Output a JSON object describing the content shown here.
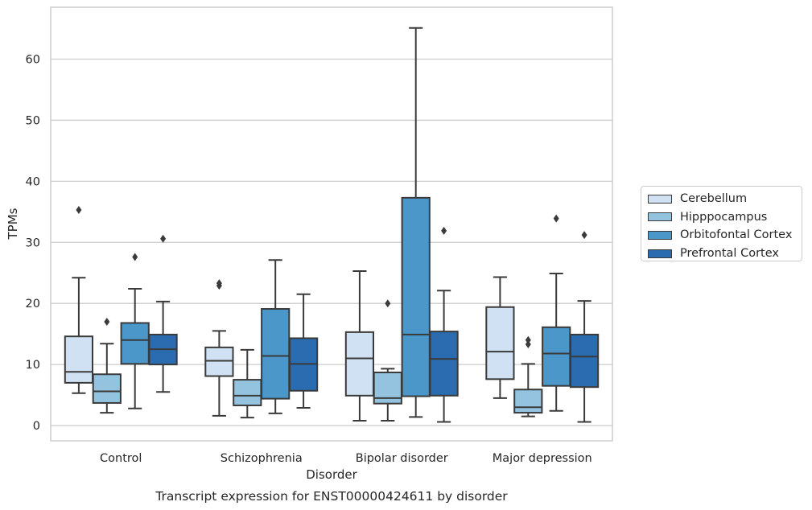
{
  "chart_data": {
    "type": "boxplot",
    "title": "Transcript expression for ENST00000424611 by disorder",
    "xlabel": "Disorder",
    "ylabel": "TPMs",
    "ylim": [
      -2.5,
      68.5
    ],
    "yticks": [
      0,
      10,
      20,
      30,
      40,
      50,
      60
    ],
    "grid": true,
    "legend_placement": "right",
    "categories": [
      "Control",
      "Schizophrenia",
      "Bipolar disorder",
      "Major depression"
    ],
    "series": [
      {
        "name": "Cerebellum",
        "color": "#cfe1f2",
        "boxes": [
          {
            "whislo": 5.3,
            "q1": 7.0,
            "med": 8.8,
            "q3": 14.6,
            "whishi": 24.2,
            "fliers": [
              35.3
            ]
          },
          {
            "whislo": 1.6,
            "q1": 8.1,
            "med": 10.6,
            "q3": 12.8,
            "whishi": 15.5,
            "fliers": [
              22.9,
              23.3
            ]
          },
          {
            "whislo": 0.8,
            "q1": 4.9,
            "med": 11.0,
            "q3": 15.3,
            "whishi": 25.3,
            "fliers": []
          },
          {
            "whislo": 4.5,
            "q1": 7.6,
            "med": 12.1,
            "q3": 19.4,
            "whishi": 24.3,
            "fliers": []
          }
        ]
      },
      {
        "name": "Hipppocampus",
        "color": "#93c3df",
        "boxes": [
          {
            "whislo": 2.1,
            "q1": 3.7,
            "med": 5.6,
            "q3": 8.4,
            "whishi": 13.4,
            "fliers": [
              17.0
            ]
          },
          {
            "whislo": 1.3,
            "q1": 3.3,
            "med": 4.9,
            "q3": 7.5,
            "whishi": 12.4,
            "fliers": []
          },
          {
            "whislo": 0.8,
            "q1": 3.6,
            "med": 4.5,
            "q3": 8.7,
            "whishi": 9.3,
            "fliers": [
              20.0
            ]
          },
          {
            "whislo": 1.5,
            "q1": 2.1,
            "med": 3.0,
            "q3": 5.9,
            "whishi": 10.1,
            "fliers": [
              13.3,
              14.0
            ]
          }
        ]
      },
      {
        "name": "Orbitofontal Cortex",
        "color": "#4b97c9",
        "boxes": [
          {
            "whislo": 2.8,
            "q1": 10.1,
            "med": 14.0,
            "q3": 16.8,
            "whishi": 22.4,
            "fliers": [
              27.6
            ]
          },
          {
            "whislo": 2.0,
            "q1": 4.4,
            "med": 11.4,
            "q3": 19.1,
            "whishi": 27.1,
            "fliers": []
          },
          {
            "whislo": 1.4,
            "q1": 4.8,
            "med": 14.9,
            "q3": 37.3,
            "whishi": 65.1,
            "fliers": []
          },
          {
            "whislo": 2.4,
            "q1": 6.5,
            "med": 11.8,
            "q3": 16.1,
            "whishi": 24.9,
            "fliers": [
              33.9
            ]
          }
        ]
      },
      {
        "name": "Prefrontal Cortex",
        "color": "#2b6cb0",
        "boxes": [
          {
            "whislo": 5.5,
            "q1": 10.0,
            "med": 12.5,
            "q3": 14.9,
            "whishi": 20.3,
            "fliers": [
              30.6
            ]
          },
          {
            "whislo": 2.9,
            "q1": 5.7,
            "med": 10.1,
            "q3": 14.3,
            "whishi": 21.5,
            "fliers": []
          },
          {
            "whislo": 0.6,
            "q1": 4.9,
            "med": 10.9,
            "q3": 15.4,
            "whishi": 22.1,
            "fliers": [
              31.9
            ]
          },
          {
            "whislo": 0.6,
            "q1": 6.3,
            "med": 11.3,
            "q3": 14.9,
            "whishi": 20.4,
            "fliers": [
              31.2
            ]
          }
        ]
      }
    ]
  }
}
